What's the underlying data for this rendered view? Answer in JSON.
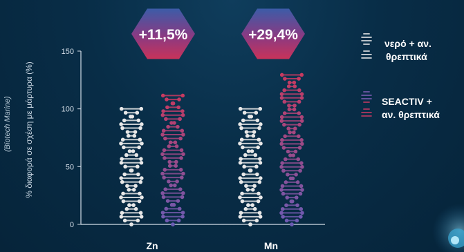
{
  "source": "(Biotech Marine)",
  "chart_data": {
    "type": "bar",
    "ylabel": "% διαφορά σε σχέση με μάρτυρα (%)",
    "ylim": [
      0,
      150
    ],
    "yticks": [
      0,
      50,
      100,
      150
    ],
    "categories": [
      "Zn",
      "Mn"
    ],
    "series": [
      {
        "name": "νερό + αν. θρεπτικά",
        "values": [
          100,
          100
        ],
        "color": "#e8e8e8"
      },
      {
        "name": "SEACTIV + αν. θρεπτικά",
        "values": [
          111.5,
          129.4
        ],
        "color": "#c23a62"
      }
    ],
    "badges": [
      "+11,5%",
      "+29,4%"
    ]
  },
  "legend": [
    {
      "line1": "νερό + αν.",
      "line2": "θρεπτικά",
      "icon": "dna-white-icon"
    },
    {
      "line1": "SEACTIV +",
      "line2": "αν. θρεπτικά",
      "icon": "dna-red-icon"
    }
  ]
}
